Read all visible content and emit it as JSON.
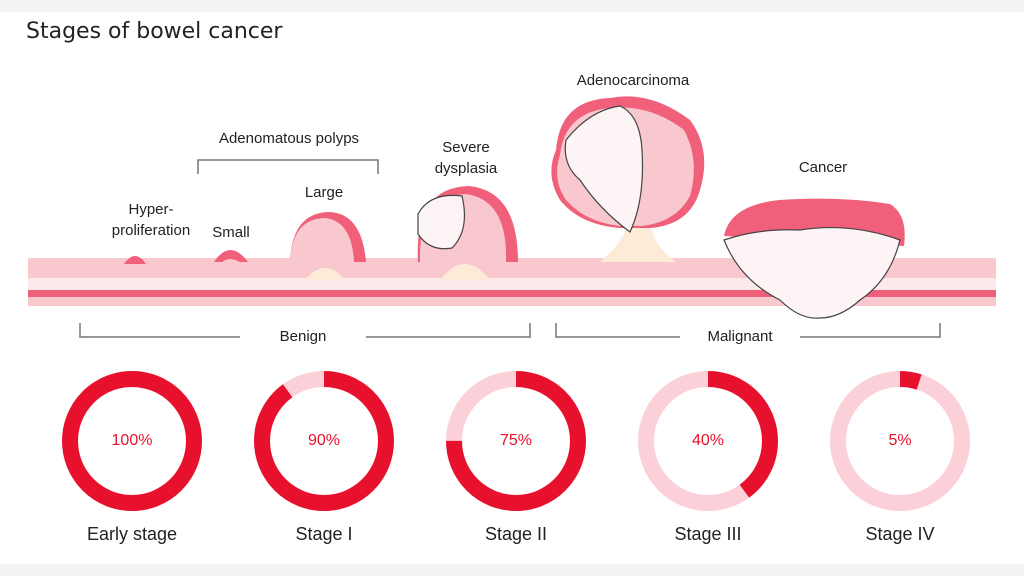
{
  "title": "Stages of bowel cancer",
  "illustration": {
    "group_label": "Adenomatous polyps",
    "hyperproliferation": [
      "Hyper-",
      "proliferation"
    ],
    "small": "Small",
    "large": "Large",
    "severe_dysplasia": [
      "Severe",
      "dysplasia"
    ],
    "adenocarcinoma": "Adenocarcinoma",
    "cancer": "Cancer",
    "benign": "Benign",
    "malignant": "Malignant"
  },
  "stages": [
    {
      "name": "Early stage",
      "value": 100,
      "value_label": "100%"
    },
    {
      "name": "Stage I",
      "value": 90,
      "value_label": "90%"
    },
    {
      "name": "Stage II",
      "value": 75,
      "value_label": "75%"
    },
    {
      "name": "Stage III",
      "value": 40,
      "value_label": "40%"
    },
    {
      "name": "Stage IV",
      "value": 5,
      "value_label": "5%"
    }
  ],
  "colors": {
    "arc": "#e8112d",
    "track": "#fbd0d8"
  }
}
